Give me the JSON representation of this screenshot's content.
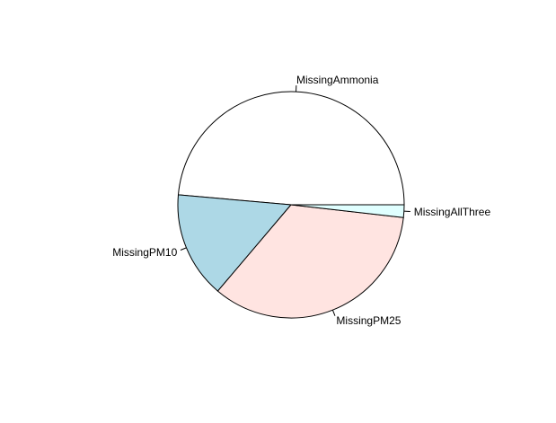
{
  "chart_data": {
    "type": "pie",
    "title": "",
    "legend": "none",
    "start_angle_deg": 0,
    "direction": "counterclockwise",
    "slices": [
      {
        "label": "MissingAmmonia",
        "value": 48.6,
        "color": "#FFFFFF"
      },
      {
        "label": "MissingPM10",
        "value": 15.2,
        "color": "#ADD8E6"
      },
      {
        "label": "MissingPM25",
        "value": 34.4,
        "color": "#FFE4E1"
      },
      {
        "label": "MissingAllThree",
        "value": 1.8,
        "color": "#E0FFFF"
      }
    ]
  }
}
